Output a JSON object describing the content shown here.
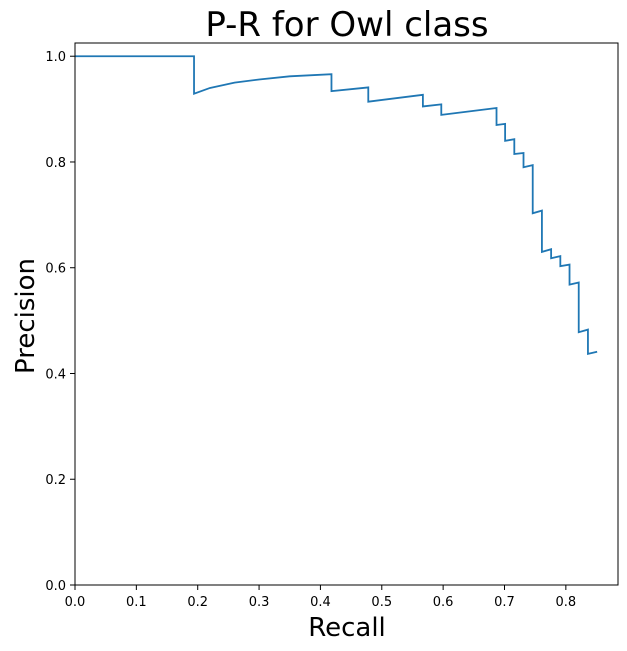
{
  "chart_data": {
    "type": "line",
    "title": "P-R for Owl class",
    "xlabel": "Recall",
    "ylabel": "Precision",
    "xlim": [
      0,
      0.885
    ],
    "ylim": [
      0,
      1.025
    ],
    "xticks": [
      0.0,
      0.1,
      0.2,
      0.3,
      0.4,
      0.5,
      0.6,
      0.7,
      0.8
    ],
    "xtick_labels": [
      "0.0",
      "0.1",
      "0.2",
      "0.3",
      "0.4",
      "0.5",
      "0.6",
      "0.7",
      "0.8"
    ],
    "yticks": [
      0.0,
      0.2,
      0.4,
      0.6,
      0.8,
      1.0
    ],
    "ytick_labels": [
      "0.0",
      "0.2",
      "0.4",
      "0.6",
      "0.8",
      "1.0"
    ],
    "grid": false,
    "line_color": "#1f77b4",
    "series": [
      {
        "x": [
          0.0,
          0.194,
          0.194,
          0.22,
          0.26,
          0.3,
          0.35,
          0.418,
          0.418,
          0.478,
          0.478,
          0.567,
          0.567,
          0.597,
          0.597,
          0.687,
          0.687,
          0.701,
          0.701,
          0.716,
          0.716,
          0.731,
          0.731,
          0.746,
          0.746,
          0.761,
          0.761,
          0.776,
          0.776,
          0.791,
          0.791,
          0.806,
          0.806,
          0.821,
          0.821,
          0.836,
          0.836,
          0.851
        ],
        "y": [
          1.0,
          1.0,
          0.929,
          0.94,
          0.95,
          0.956,
          0.962,
          0.966,
          0.934,
          0.941,
          0.914,
          0.927,
          0.905,
          0.909,
          0.889,
          0.902,
          0.87,
          0.872,
          0.84,
          0.843,
          0.815,
          0.817,
          0.79,
          0.794,
          0.703,
          0.708,
          0.63,
          0.635,
          0.618,
          0.622,
          0.603,
          0.606,
          0.568,
          0.572,
          0.478,
          0.483,
          0.437,
          0.441
        ]
      }
    ]
  }
}
